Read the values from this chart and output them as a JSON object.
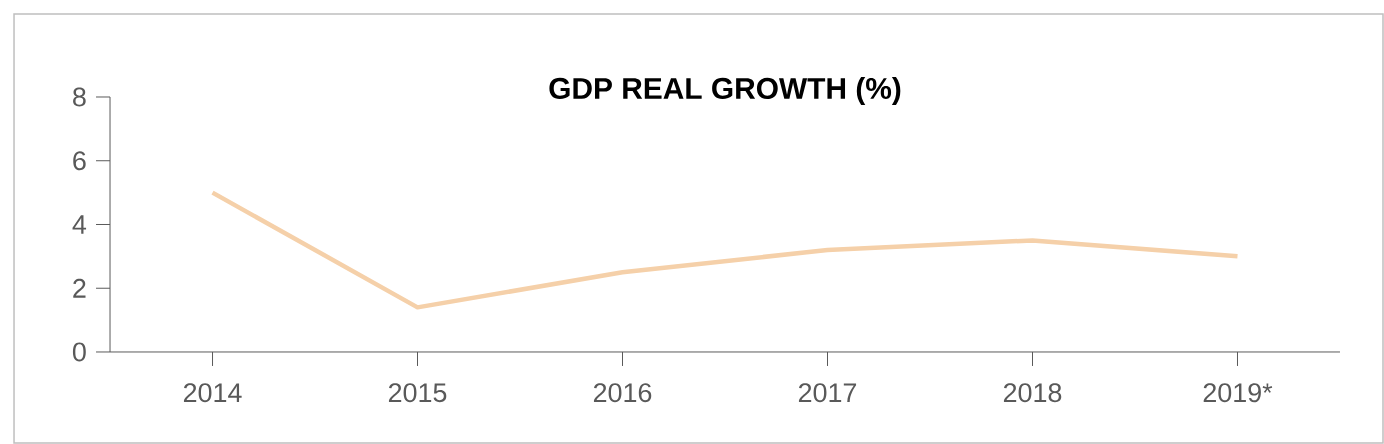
{
  "chart_data": {
    "type": "line",
    "title": "GDP REAL GROWTH (%)",
    "categories": [
      "2014",
      "2015",
      "2016",
      "2017",
      "2018",
      "2019*"
    ],
    "values": [
      5.0,
      1.4,
      2.5,
      3.2,
      3.5,
      3.0
    ],
    "color": "#f5d0a9",
    "ylim": [
      0,
      8
    ],
    "yticks": [
      0,
      2,
      4,
      6,
      8
    ],
    "grid": false,
    "marker": "none",
    "line_style": "solid"
  }
}
